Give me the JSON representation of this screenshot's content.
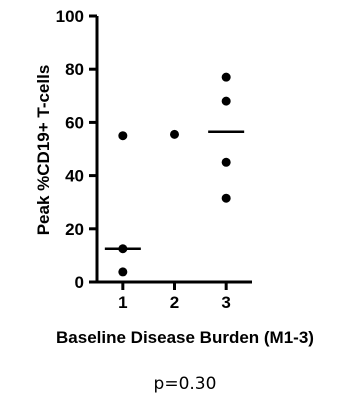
{
  "chart_data": {
    "type": "scatter",
    "title": "",
    "xlabel": "Baseline Disease Burden (M1-3)",
    "ylabel": "Peak %CD19+ T-cells",
    "annotation": "p=0.30",
    "categories": [
      "1",
      "2",
      "3"
    ],
    "xlim": [
      0.5,
      3.5
    ],
    "ylim": [
      0,
      100
    ],
    "y_ticks": [
      0,
      20,
      40,
      60,
      80,
      100
    ],
    "grid": false,
    "series": [
      {
        "points": [
          {
            "x": 1,
            "y": 55
          },
          {
            "x": 1,
            "y": 12.5
          },
          {
            "x": 1,
            "y": 3.8
          },
          {
            "x": 2,
            "y": 55.5
          },
          {
            "x": 3,
            "y": 77
          },
          {
            "x": 3,
            "y": 68
          },
          {
            "x": 3,
            "y": 45
          },
          {
            "x": 3,
            "y": 31.5
          }
        ]
      }
    ],
    "medians": [
      {
        "x": 1,
        "y": 12.5
      },
      {
        "x": 3,
        "y": 56.5
      }
    ],
    "colors": {
      "marker": "#000000",
      "axis": "#000000"
    }
  }
}
